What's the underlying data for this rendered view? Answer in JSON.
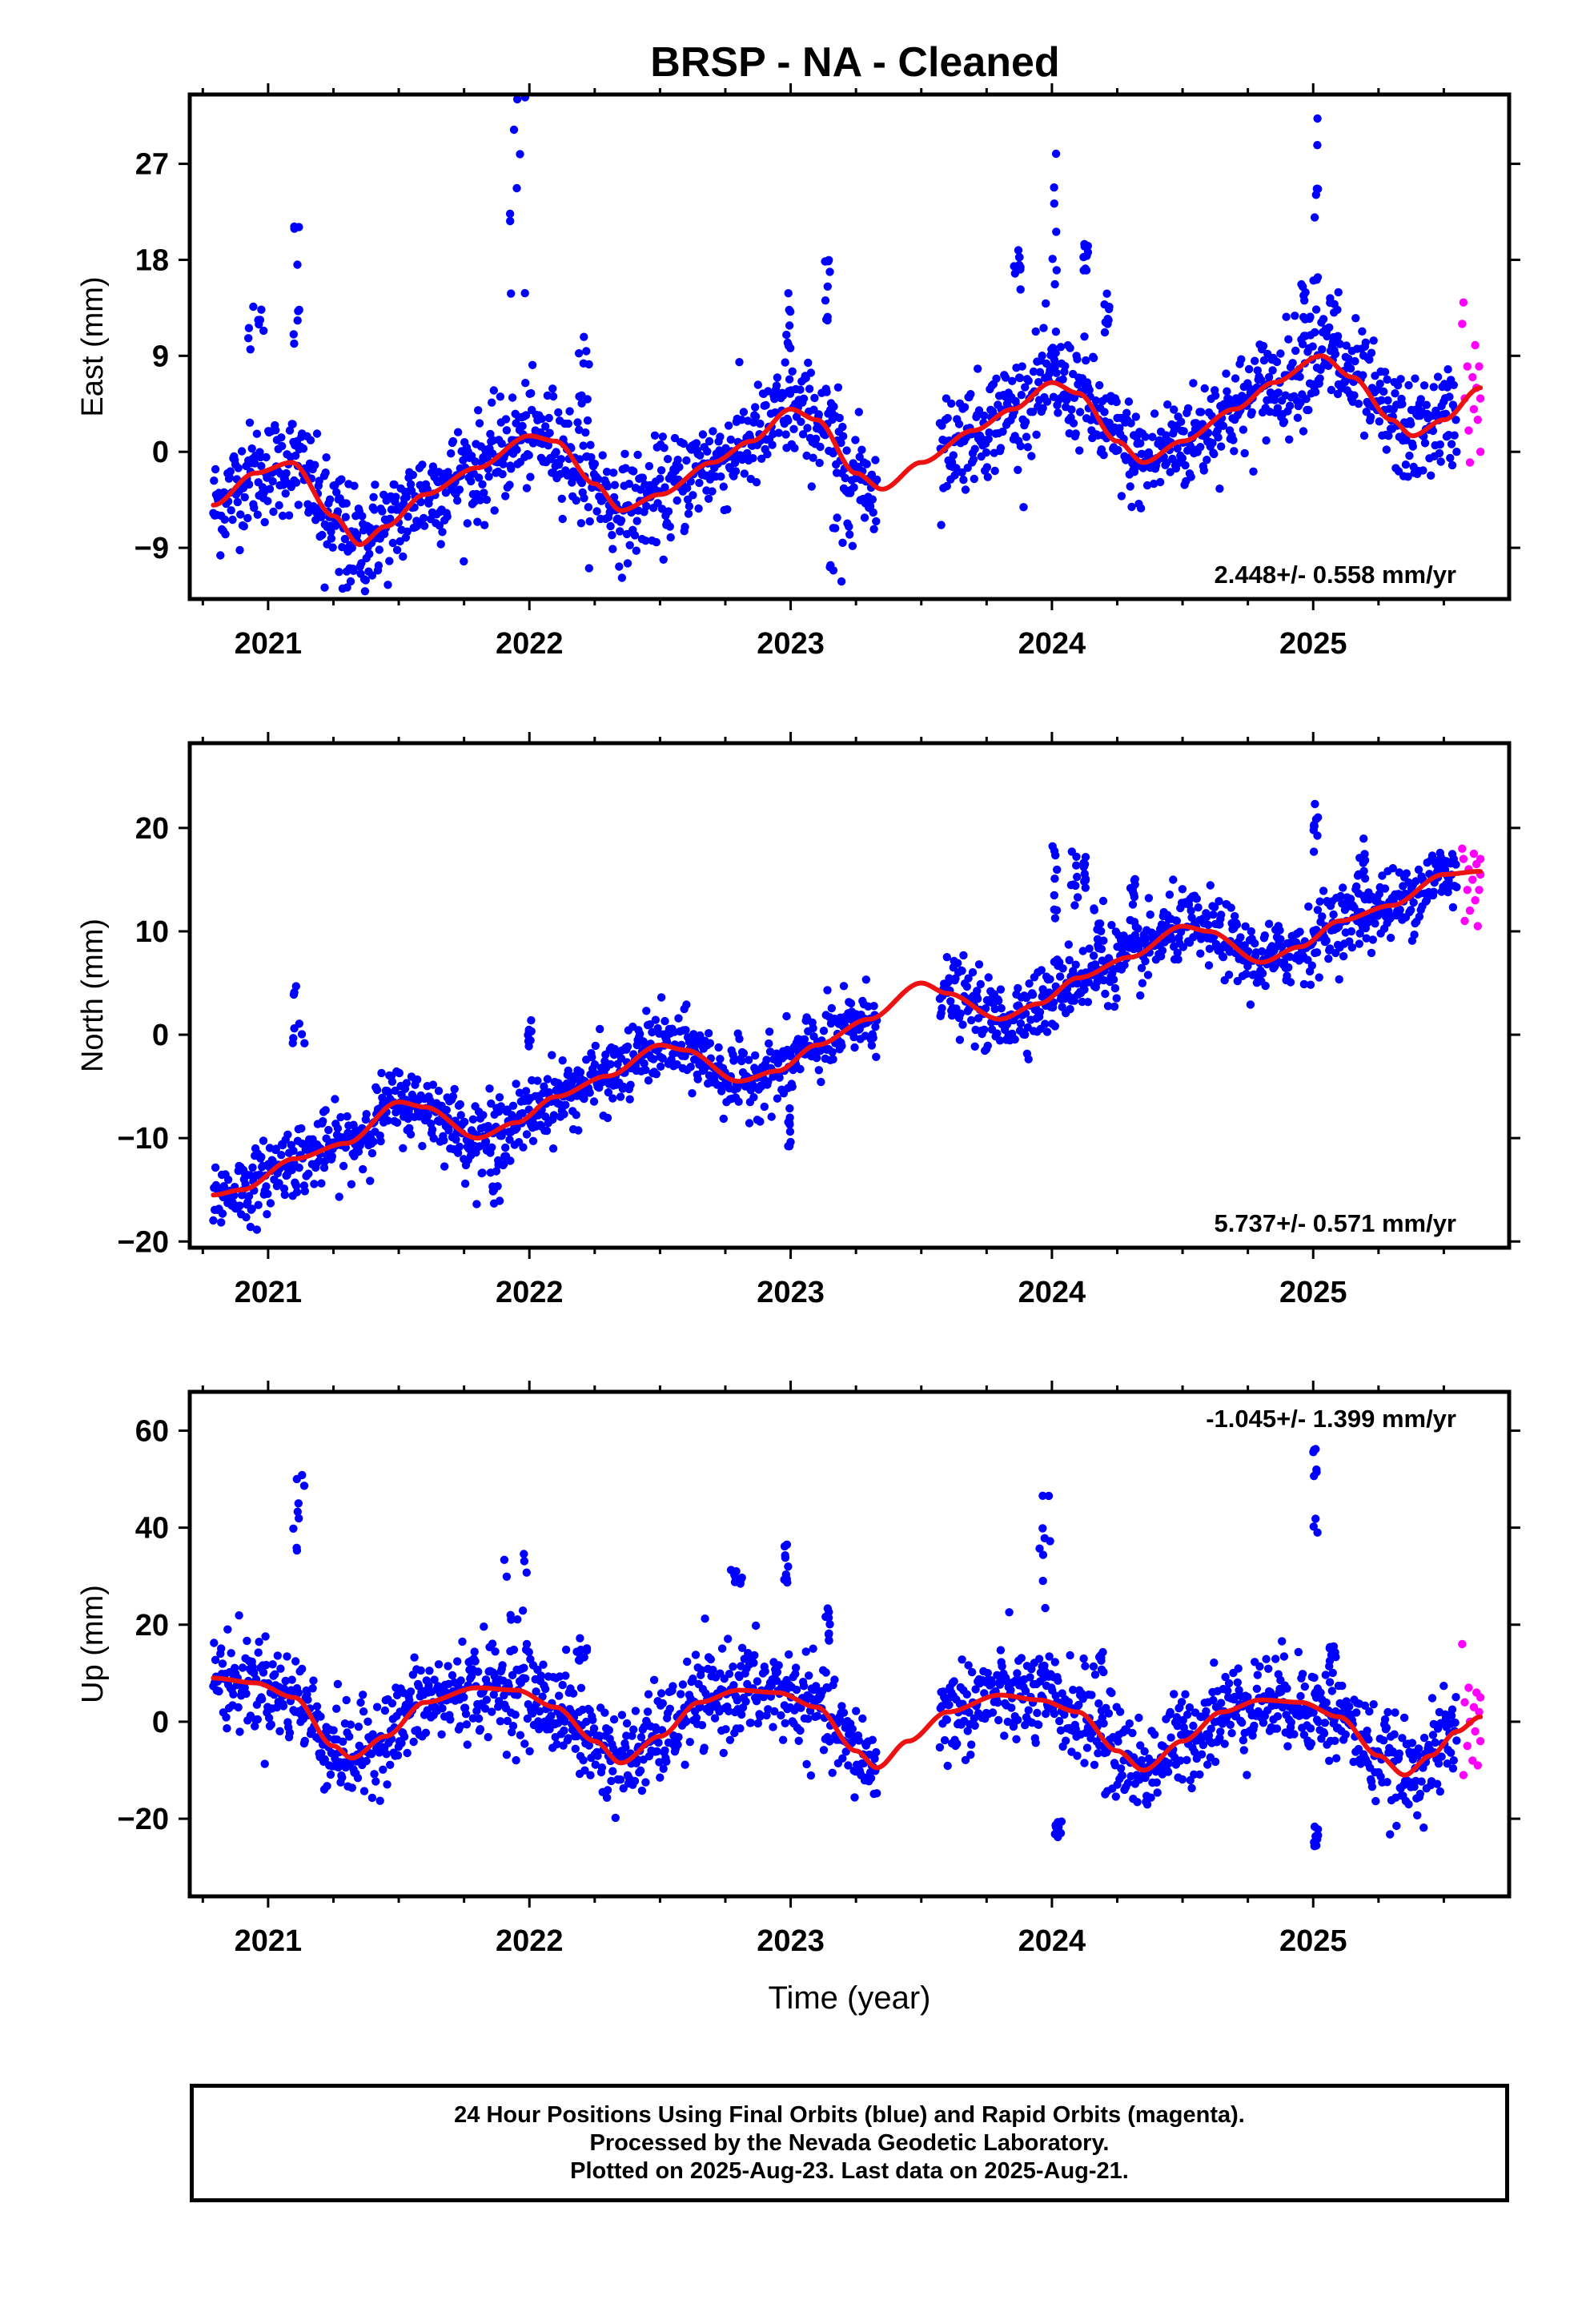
{
  "chart_data": {
    "title": "BRSP  - NA - Cleaned",
    "type": "scatter",
    "legend": {
      "final_orbits": "24 Hour Positions Using Final Orbits (blue) and Rapid Orbits (magenta).",
      "colors": {
        "final": "#0000ff",
        "rapid": "#ff00ff",
        "model": "#ee1111"
      }
    },
    "x_ticks": [
      "2021",
      "2022",
      "2023",
      "2024",
      "2025"
    ],
    "x_tick_values": [
      2021,
      2022,
      2023,
      2024,
      2025
    ],
    "xlim": [
      2020.7,
      2025.75
    ],
    "xlabel": "Time (year)",
    "data_start": 2020.79,
    "final_end": 2025.55,
    "rapid_end": 2025.64,
    "data_gaps": [
      [
        2023.33,
        2023.57
      ]
    ],
    "panels": [
      {
        "name": "east",
        "ylabel": "East (mm)",
        "yticks": [
          27,
          18,
          9,
          0,
          -9
        ],
        "ylim": [
          -13.8,
          33.5
        ],
        "rate": "2.448+/- 0.558 mm/yr",
        "rate_position": "bottom-right",
        "scatter_sd": 2.4,
        "model": [
          [
            2020.79,
            -5.0
          ],
          [
            2020.95,
            -2.0
          ],
          [
            2021.09,
            -1.0
          ],
          [
            2021.25,
            -6.0
          ],
          [
            2021.35,
            -8.7
          ],
          [
            2021.45,
            -7.0
          ],
          [
            2021.6,
            -4.0
          ],
          [
            2021.8,
            -1.5
          ],
          [
            2022.0,
            1.5
          ],
          [
            2022.1,
            1.0
          ],
          [
            2022.25,
            -3.0
          ],
          [
            2022.35,
            -5.5
          ],
          [
            2022.5,
            -4.0
          ],
          [
            2022.7,
            -1.0
          ],
          [
            2022.85,
            1.0
          ],
          [
            2023.0,
            4.0
          ],
          [
            2023.1,
            3.0
          ],
          [
            2023.25,
            -2.0
          ],
          [
            2023.35,
            -3.5
          ],
          [
            2023.5,
            -1.0
          ],
          [
            2023.7,
            2.0
          ],
          [
            2023.85,
            4.0
          ],
          [
            2024.0,
            6.5
          ],
          [
            2024.1,
            5.5
          ],
          [
            2024.25,
            1.0
          ],
          [
            2024.35,
            -1.0
          ],
          [
            2024.5,
            1.0
          ],
          [
            2024.7,
            4.0
          ],
          [
            2024.85,
            6.5
          ],
          [
            2025.03,
            9.0
          ],
          [
            2025.15,
            7.0
          ],
          [
            2025.3,
            3.0
          ],
          [
            2025.38,
            1.5
          ],
          [
            2025.5,
            3.0
          ],
          [
            2025.64,
            6.0
          ]
        ],
        "clusters": [
          [
            2020.92,
            2021.0,
            11.5,
            5
          ],
          [
            2021.09,
            2021.12,
            16,
            14
          ],
          [
            2021.2,
            2021.35,
            -10,
            6
          ],
          [
            2021.92,
            2021.99,
            23,
            22
          ],
          [
            2022.18,
            2022.23,
            7,
            8
          ],
          [
            2022.98,
            2023.0,
            12,
            6
          ],
          [
            2023.13,
            2023.15,
            15,
            6
          ],
          [
            2023.15,
            2023.25,
            -9,
            8
          ],
          [
            2023.85,
            2023.88,
            17,
            4
          ],
          [
            2024.0,
            2024.03,
            18,
            20
          ],
          [
            2024.12,
            2024.14,
            18,
            3
          ],
          [
            2024.2,
            2024.22,
            13,
            4
          ],
          [
            2024.95,
            2024.99,
            14,
            4
          ],
          [
            2025.0,
            2025.02,
            26,
            22
          ],
          [
            2025.06,
            2025.1,
            12,
            6
          ]
        ],
        "rapid": [
          [
            2025.57,
            12.0
          ],
          [
            2025.575,
            14.0
          ],
          [
            2025.58,
            5.0
          ],
          [
            2025.59,
            8.0
          ],
          [
            2025.595,
            2.0
          ],
          [
            2025.6,
            -1.0
          ],
          [
            2025.61,
            7.0
          ],
          [
            2025.615,
            4.0
          ],
          [
            2025.62,
            10.0
          ],
          [
            2025.625,
            6.0
          ],
          [
            2025.63,
            3.0
          ],
          [
            2025.635,
            8.0
          ],
          [
            2025.64,
            0.0
          ],
          [
            2025.64,
            5.0
          ]
        ]
      },
      {
        "name": "north",
        "ylabel": "North (mm)",
        "yticks": [
          20,
          10,
          0,
          -10,
          -20
        ],
        "ylim": [
          -20.6,
          28.2
        ],
        "rate": "5.737+/- 0.571 mm/yr",
        "rate_position": "bottom-right",
        "scatter_sd": 1.7,
        "model": [
          [
            2020.79,
            -15.5
          ],
          [
            2020.9,
            -15.0
          ],
          [
            2021.1,
            -12.0
          ],
          [
            2021.3,
            -10.5
          ],
          [
            2021.5,
            -6.5
          ],
          [
            2021.6,
            -7.0
          ],
          [
            2021.8,
            -10.0
          ],
          [
            2021.95,
            -8.5
          ],
          [
            2022.1,
            -6.0
          ],
          [
            2022.3,
            -4.0
          ],
          [
            2022.5,
            -1.0
          ],
          [
            2022.6,
            -1.5
          ],
          [
            2022.8,
            -4.5
          ],
          [
            2022.95,
            -3.5
          ],
          [
            2023.1,
            -1.0
          ],
          [
            2023.3,
            1.5
          ],
          [
            2023.5,
            5.0
          ],
          [
            2023.6,
            4.0
          ],
          [
            2023.8,
            1.5
          ],
          [
            2023.95,
            3.0
          ],
          [
            2024.1,
            5.5
          ],
          [
            2024.3,
            7.5
          ],
          [
            2024.5,
            10.5
          ],
          [
            2024.6,
            10.0
          ],
          [
            2024.8,
            7.0
          ],
          [
            2024.95,
            8.5
          ],
          [
            2025.1,
            11.0
          ],
          [
            2025.3,
            12.5
          ],
          [
            2025.5,
            15.5
          ],
          [
            2025.64,
            15.8
          ]
        ],
        "clusters": [
          [
            2021.08,
            2021.15,
            2,
            8
          ],
          [
            2021.85,
            2021.89,
            -14,
            5
          ],
          [
            2021.99,
            2022.01,
            0,
            3
          ],
          [
            2022.98,
            2023.0,
            -9,
            4
          ],
          [
            2024.0,
            2024.02,
            15,
            8
          ],
          [
            2024.07,
            2024.1,
            15,
            6
          ],
          [
            2024.12,
            2024.14,
            16,
            4
          ],
          [
            2024.16,
            2024.2,
            11,
            4
          ],
          [
            2024.3,
            2024.32,
            14,
            3
          ],
          [
            2025.0,
            2025.02,
            20,
            5
          ],
          [
            2025.16,
            2025.2,
            17,
            4
          ]
        ],
        "rapid": [
          [
            2025.57,
            18.0
          ],
          [
            2025.575,
            17.0
          ],
          [
            2025.58,
            11.0
          ],
          [
            2025.59,
            14.0
          ],
          [
            2025.595,
            16.0
          ],
          [
            2025.6,
            12.0
          ],
          [
            2025.61,
            15.0
          ],
          [
            2025.615,
            17.5
          ],
          [
            2025.62,
            13.0
          ],
          [
            2025.625,
            16.5
          ],
          [
            2025.63,
            10.5
          ],
          [
            2025.635,
            14.0
          ],
          [
            2025.64,
            17.0
          ],
          [
            2025.64,
            15.5
          ]
        ]
      },
      {
        "name": "up",
        "ylabel": "Up (mm)",
        "yticks": [
          60,
          40,
          20,
          0,
          -20
        ],
        "ylim": [
          -36.0,
          68.0
        ],
        "rate": "-1.045+/- 1.399 mm/yr",
        "rate_position": "top-right",
        "scatter_sd": 4.8,
        "model": [
          [
            2020.79,
            9.0
          ],
          [
            2020.95,
            8.0
          ],
          [
            2021.1,
            5.0
          ],
          [
            2021.25,
            -5.0
          ],
          [
            2021.32,
            -7.5
          ],
          [
            2021.45,
            -3.0
          ],
          [
            2021.6,
            4.0
          ],
          [
            2021.8,
            7.0
          ],
          [
            2021.95,
            6.5
          ],
          [
            2022.1,
            3.0
          ],
          [
            2022.25,
            -4.0
          ],
          [
            2022.35,
            -8.5
          ],
          [
            2022.5,
            -3.0
          ],
          [
            2022.65,
            4.0
          ],
          [
            2022.8,
            6.5
          ],
          [
            2022.95,
            6.0
          ],
          [
            2023.1,
            3.0
          ],
          [
            2023.25,
            -6.0
          ],
          [
            2023.33,
            -9.5
          ],
          [
            2023.45,
            -4.0
          ],
          [
            2023.6,
            2.0
          ],
          [
            2023.8,
            5.5
          ],
          [
            2023.95,
            4.5
          ],
          [
            2024.1,
            2.0
          ],
          [
            2024.25,
            -6.0
          ],
          [
            2024.35,
            -10.0
          ],
          [
            2024.5,
            -4.0
          ],
          [
            2024.65,
            2.0
          ],
          [
            2024.8,
            4.5
          ],
          [
            2024.95,
            4.0
          ],
          [
            2025.1,
            1.0
          ],
          [
            2025.25,
            -7.0
          ],
          [
            2025.35,
            -11.0
          ],
          [
            2025.45,
            -7.0
          ],
          [
            2025.55,
            -2.0
          ],
          [
            2025.64,
            1.0
          ]
        ],
        "clusters": [
          [
            2021.08,
            2021.14,
            42,
            18
          ],
          [
            2021.9,
            2021.99,
            30,
            18
          ],
          [
            2022.18,
            2022.22,
            15,
            5
          ],
          [
            2022.77,
            2022.82,
            30,
            4
          ],
          [
            2022.97,
            2023.0,
            32,
            10
          ],
          [
            2023.13,
            2023.15,
            20,
            7
          ],
          [
            2023.95,
            2024.0,
            35,
            30
          ],
          [
            2024.0,
            2024.04,
            -22,
            4
          ],
          [
            2024.15,
            2024.2,
            12,
            5
          ],
          [
            2025.0,
            2025.02,
            46,
            22
          ],
          [
            2025.0,
            2025.02,
            -25,
            8
          ],
          [
            2025.06,
            2025.1,
            14,
            6
          ]
        ],
        "rapid": [
          [
            2025.57,
            16.0
          ],
          [
            2025.575,
            -11.0
          ],
          [
            2025.58,
            4.0
          ],
          [
            2025.59,
            -5.0
          ],
          [
            2025.595,
            7.0
          ],
          [
            2025.6,
            0.0
          ],
          [
            2025.61,
            -8.0
          ],
          [
            2025.615,
            3.0
          ],
          [
            2025.62,
            -2.0
          ],
          [
            2025.625,
            6.0
          ],
          [
            2025.63,
            -9.0
          ],
          [
            2025.635,
            2.0
          ],
          [
            2025.64,
            5.0
          ],
          [
            2025.64,
            -4.0
          ]
        ]
      }
    ]
  },
  "footer": {
    "line1": "24 Hour Positions Using Final Orbits (blue) and Rapid Orbits (magenta).",
    "line2": "Processed by the Nevada Geodetic Laboratory.",
    "line3": "Plotted on 2025-Aug-23. Last data on 2025-Aug-21."
  }
}
